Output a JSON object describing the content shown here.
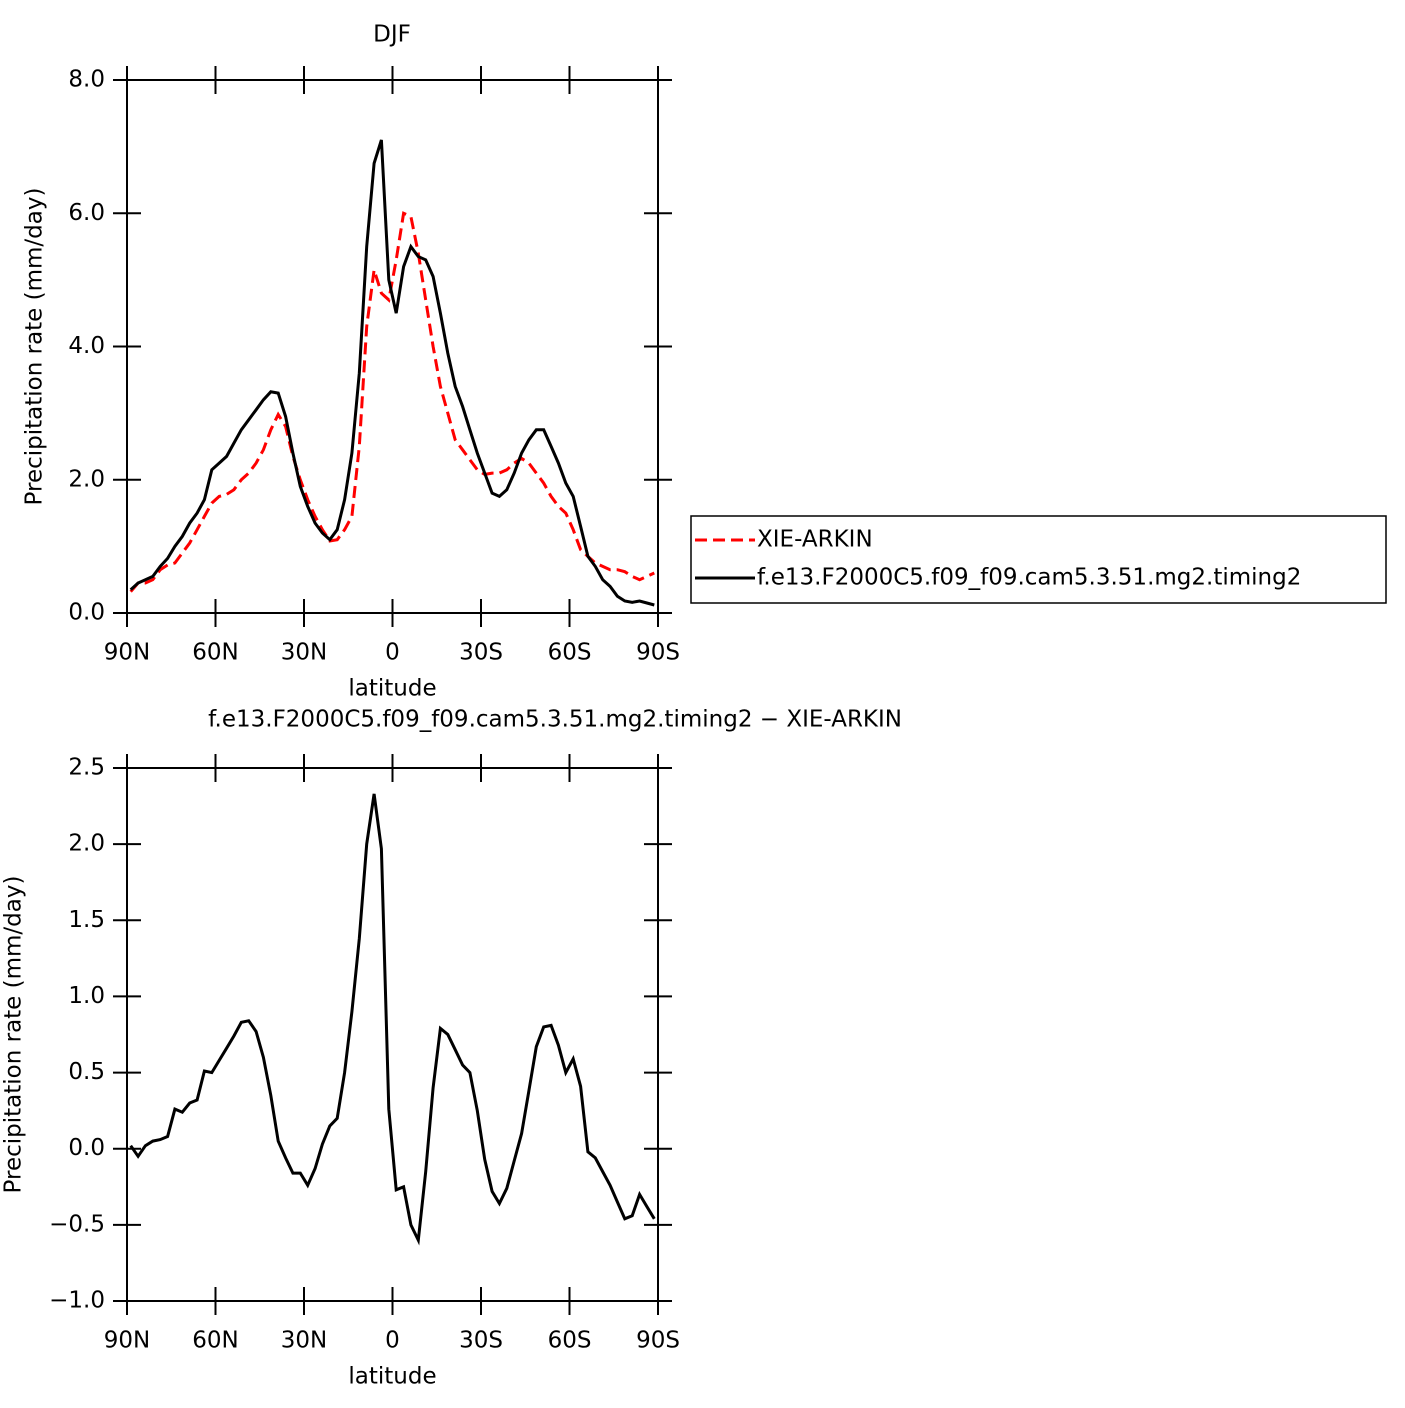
{
  "chart_data": [
    {
      "type": "line",
      "title": "DJF",
      "xlabel": "latitude",
      "ylabel": "Precipitation rate (mm/day)",
      "x": [
        88.75,
        86.25,
        83.75,
        81.25,
        78.75,
        76.25,
        73.75,
        71.25,
        68.75,
        66.25,
        63.75,
        61.25,
        58.75,
        56.25,
        53.75,
        51.25,
        48.75,
        46.25,
        43.75,
        41.25,
        38.75,
        36.25,
        33.75,
        31.25,
        28.75,
        26.25,
        23.75,
        21.25,
        18.75,
        16.25,
        13.75,
        11.25,
        8.75,
        6.25,
        3.75,
        1.25,
        -1.25,
        -3.75,
        -6.25,
        -8.75,
        -11.25,
        -13.75,
        -16.25,
        -18.75,
        -21.25,
        -23.75,
        -26.25,
        -28.75,
        -31.25,
        -33.75,
        -36.25,
        -38.75,
        -41.25,
        -43.75,
        -46.25,
        -48.75,
        -51.25,
        -53.75,
        -56.25,
        -58.75,
        -61.25,
        -63.75,
        -66.25,
        -68.75,
        -71.25,
        -73.75,
        -76.25,
        -78.75,
        -81.25,
        -83.75,
        -86.25,
        -88.75
      ],
      "series": [
        {
          "name": "XIE-ARKIN",
          "color": "#ff0000",
          "dashed": true,
          "values": [
            0.32,
            0.45,
            0.45,
            0.5,
            0.65,
            0.72,
            0.75,
            0.9,
            1.05,
            1.25,
            1.45,
            1.65,
            1.75,
            1.78,
            1.85,
            2.0,
            2.1,
            2.25,
            2.45,
            2.75,
            2.98,
            2.8,
            2.35,
            2.0,
            1.7,
            1.45,
            1.25,
            1.08,
            1.1,
            1.25,
            1.45,
            2.5,
            4.3,
            5.15,
            4.8,
            4.7,
            5.3,
            6.0,
            5.95,
            5.4,
            4.7,
            4.0,
            3.4,
            3.0,
            2.6,
            2.45,
            2.3,
            2.15,
            2.08,
            2.1,
            2.1,
            2.15,
            2.25,
            2.32,
            2.25,
            2.1,
            1.95,
            1.75,
            1.6,
            1.5,
            1.25,
            0.95,
            0.85,
            0.75,
            0.7,
            0.65,
            0.65,
            0.62,
            0.55,
            0.5,
            0.55,
            0.6
          ]
        },
        {
          "name": "f.e13.F2000C5.f09_f09.cam5.3.51.mg2.timing2",
          "color": "#000000",
          "dashed": false,
          "values": [
            0.35,
            0.45,
            0.5,
            0.55,
            0.7,
            0.82,
            1.0,
            1.15,
            1.35,
            1.5,
            1.7,
            2.15,
            2.25,
            2.35,
            2.55,
            2.75,
            2.9,
            3.05,
            3.2,
            3.32,
            3.3,
            2.95,
            2.4,
            1.9,
            1.6,
            1.35,
            1.2,
            1.1,
            1.25,
            1.7,
            2.4,
            3.6,
            5.5,
            6.75,
            7.1,
            5.0,
            4.5,
            5.2,
            5.5,
            5.35,
            5.3,
            5.05,
            4.5,
            3.9,
            3.4,
            3.1,
            2.75,
            2.4,
            2.1,
            1.8,
            1.75,
            1.85,
            2.1,
            2.4,
            2.6,
            2.75,
            2.75,
            2.5,
            2.25,
            1.95,
            1.75,
            1.3,
            0.85,
            0.7,
            0.5,
            0.4,
            0.25,
            0.18,
            0.16,
            0.18,
            0.15,
            0.12
          ]
        }
      ],
      "xlim": [
        90,
        -90
      ],
      "xticks": [
        {
          "value": 90,
          "label": "90N"
        },
        {
          "value": 60,
          "label": "60N"
        },
        {
          "value": 30,
          "label": "30N"
        },
        0,
        {
          "value": -30,
          "label": "30S"
        },
        {
          "value": -60,
          "label": "60S"
        },
        {
          "value": -90,
          "label": "90S"
        }
      ],
      "ylim": [
        0,
        8
      ],
      "yticks": [
        {
          "value": 0,
          "label": "0.0"
        },
        {
          "value": 2,
          "label": "2.0"
        },
        {
          "value": 4,
          "label": "4.0"
        },
        {
          "value": 6,
          "label": "6.0"
        },
        {
          "value": 8,
          "label": "8.0"
        }
      ],
      "legend": "right"
    },
    {
      "type": "line",
      "title": "f.e13.F2000C5.f09_f09.cam5.3.51.mg2.timing2 − XIE-ARKIN",
      "xlabel": "latitude",
      "ylabel": "Precipitation rate (mm/day)",
      "x": [
        88.75,
        86.25,
        83.75,
        81.25,
        78.75,
        76.25,
        73.75,
        71.25,
        68.75,
        66.25,
        63.75,
        61.25,
        58.75,
        56.25,
        53.75,
        51.25,
        48.75,
        46.25,
        43.75,
        41.25,
        38.75,
        36.25,
        33.75,
        31.25,
        28.75,
        26.25,
        23.75,
        21.25,
        18.75,
        16.25,
        13.75,
        11.25,
        8.75,
        6.25,
        3.75,
        1.25,
        -1.25,
        -3.75,
        -6.25,
        -8.75,
        -11.25,
        -13.75,
        -16.25,
        -18.75,
        -21.25,
        -23.75,
        -26.25,
        -28.75,
        -31.25,
        -33.75,
        -36.25,
        -38.75,
        -41.25,
        -43.75,
        -46.25,
        -48.75,
        -51.25,
        -53.75,
        -56.25,
        -58.75,
        -61.25,
        -63.75,
        -66.25,
        -68.75,
        -71.25,
        -73.75,
        -76.25,
        -78.75,
        -81.25,
        -83.75,
        -86.25,
        -88.75
      ],
      "series": [
        {
          "color": "#000000",
          "dashed": false,
          "values": [
            0.02,
            -0.05,
            0.02,
            0.05,
            0.06,
            0.08,
            0.26,
            0.24,
            0.3,
            0.32,
            0.51,
            0.5,
            0.58,
            0.66,
            0.74,
            0.83,
            0.84,
            0.77,
            0.6,
            0.35,
            0.05,
            -0.06,
            -0.16,
            -0.16,
            -0.24,
            -0.13,
            0.03,
            0.15,
            0.2,
            0.5,
            0.9,
            1.38,
            2.0,
            2.33,
            1.97,
            0.26,
            -0.27,
            -0.25,
            -0.5,
            -0.6,
            -0.15,
            0.4,
            0.79,
            0.75,
            0.65,
            0.55,
            0.5,
            0.25,
            -0.07,
            -0.28,
            -0.36,
            -0.26,
            -0.08,
            0.1,
            0.38,
            0.67,
            0.8,
            0.81,
            0.68,
            0.5,
            0.59,
            0.41,
            -0.02,
            -0.06,
            -0.15,
            -0.24,
            -0.35,
            -0.46,
            -0.44,
            -0.3,
            -0.38,
            -0.46
          ]
        }
      ],
      "xlim": [
        90,
        -90
      ],
      "xticks": [
        {
          "value": 90,
          "label": "90N"
        },
        {
          "value": 60,
          "label": "60N"
        },
        {
          "value": 30,
          "label": "30N"
        },
        0,
        {
          "value": -30,
          "label": "30S"
        },
        {
          "value": -60,
          "label": "60S"
        },
        {
          "value": -90,
          "label": "90S"
        }
      ],
      "ylim": [
        -1,
        2.5
      ],
      "yticks": [
        {
          "value": -1,
          "label": "−1.0"
        },
        {
          "value": -0.5,
          "label": "−0.5"
        },
        {
          "value": 0,
          "label": "0.0"
        },
        {
          "value": 0.5,
          "label": "0.5"
        },
        {
          "value": 1,
          "label": "1.0"
        },
        {
          "value": 1.5,
          "label": "1.5"
        },
        {
          "value": 2,
          "label": "2.0"
        },
        {
          "value": 2.5,
          "label": "2.5"
        }
      ]
    }
  ]
}
